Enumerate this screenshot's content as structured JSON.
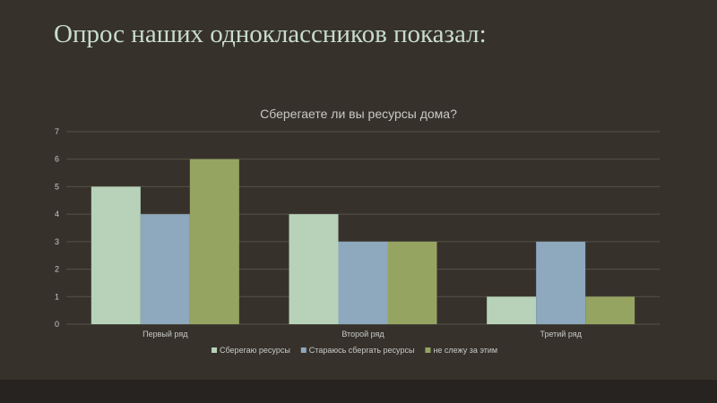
{
  "slide": {
    "title": "Опрос наших одноклассников показал:"
  },
  "colors": {
    "background": "#36322b",
    "title_text": "#c9dccb",
    "grid": "#57524a",
    "axis_text": "#c8c8c8"
  },
  "chart_data": {
    "type": "bar",
    "title": "Сберегаете ли вы ресурсы дома?",
    "categories": [
      "Первый ряд",
      "Второй ряд",
      "Третий ряд"
    ],
    "series": [
      {
        "name": "Сберегаю ресурсы",
        "values": [
          5,
          4,
          1
        ],
        "color": "#b7d2b9"
      },
      {
        "name": "Стараюсь сбергать ресурсы",
        "values": [
          4,
          3,
          3
        ],
        "color": "#8ea8bd"
      },
      {
        "name": "не слежу за этим",
        "values": [
          6,
          3,
          1
        ],
        "color": "#96a462"
      }
    ],
    "ylim": [
      0,
      7
    ],
    "yticks": [
      0,
      1,
      2,
      3,
      4,
      5,
      6,
      7
    ],
    "grid": true,
    "legend_position": "bottom",
    "xlabel": "",
    "ylabel": ""
  }
}
